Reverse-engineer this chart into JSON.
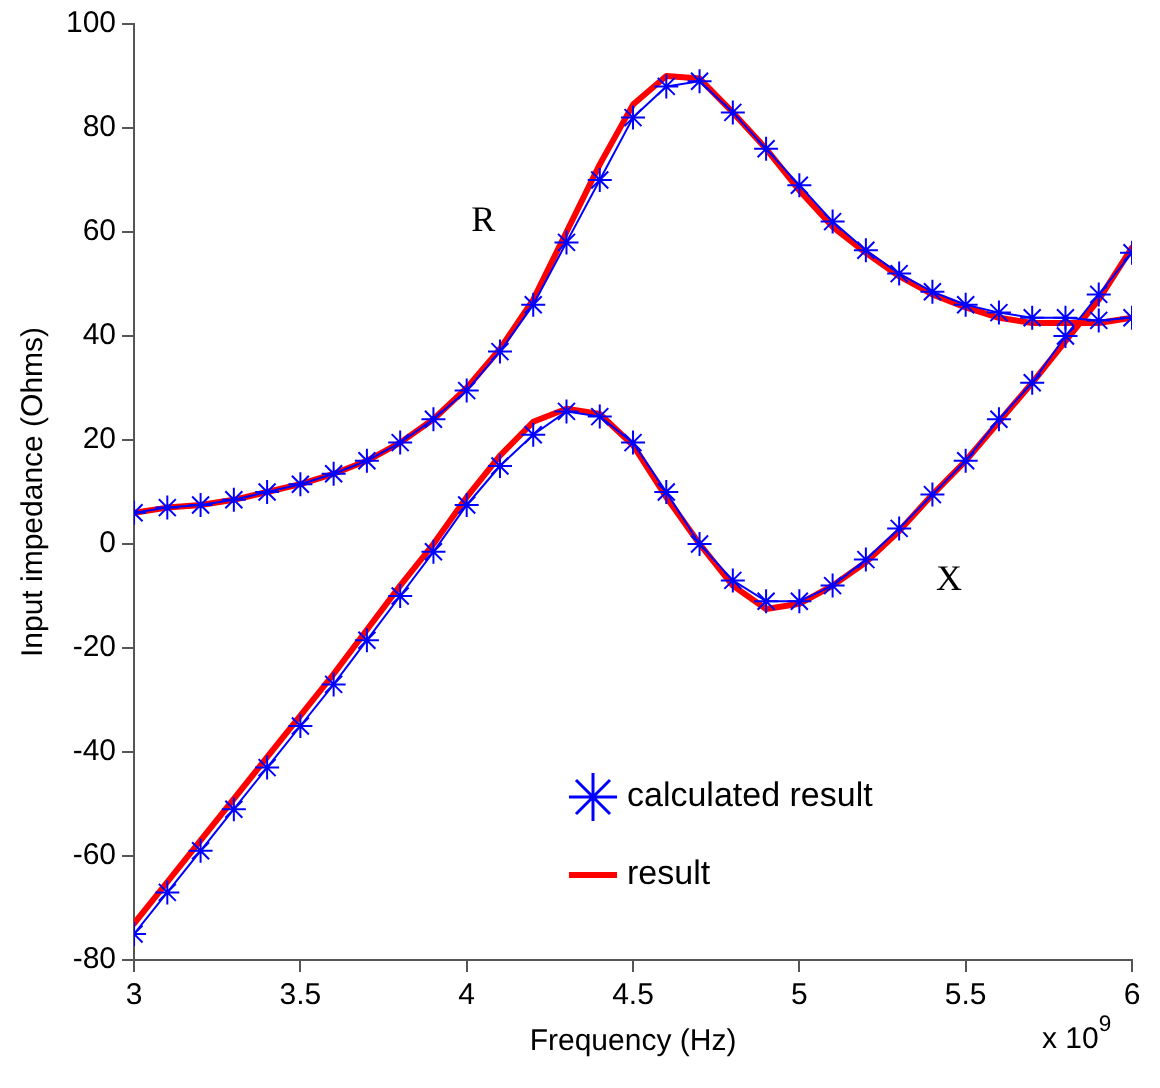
{
  "chart_data": {
    "type": "line",
    "xlabel": "Frequency (Hz)",
    "ylabel": "Input impedance (Ohms)",
    "x": [
      3,
      3.1,
      3.2,
      3.3,
      3.4,
      3.5,
      3.6,
      3.7,
      3.8,
      3.9,
      4,
      4.1,
      4.2,
      4.3,
      4.4,
      4.5,
      4.6,
      4.7,
      4.8,
      4.9,
      5,
      5.1,
      5.2,
      5.3,
      5.4,
      5.5,
      5.6,
      5.7,
      5.8,
      5.9,
      6
    ],
    "xlim": [
      3,
      6
    ],
    "xticks": [
      3,
      3.5,
      4,
      4.5,
      5,
      5.5,
      6
    ],
    "ylim": [
      -80,
      100
    ],
    "yticks": [
      -80,
      -60,
      -40,
      -20,
      0,
      20,
      40,
      60,
      80,
      100
    ],
    "grid": false,
    "legend": "bottom right",
    "line_style": "solid",
    "series": [
      {
        "name": "calculated result",
        "color": "#0000ff",
        "marker": "cross",
        "values": [
          6,
          7,
          7.5,
          8.5,
          10,
          11.5,
          13.5,
          16,
          19.5,
          24,
          29.5,
          37,
          46,
          58,
          70,
          82,
          88,
          89,
          83,
          76,
          69,
          62,
          56.5,
          52,
          48.5,
          46,
          44.5,
          43.5,
          43.5,
          43,
          43.5
        ]
      },
      {
        "name": "result",
        "color": "#ff0000",
        "marker": "none",
        "values": [
          6,
          7,
          7.5,
          8.5,
          10,
          11.5,
          13.5,
          16,
          19.5,
          24,
          30,
          37.5,
          47,
          60,
          73,
          84.5,
          90,
          89.5,
          83,
          76,
          68,
          61,
          56,
          51.5,
          48,
          45.5,
          43.5,
          42.5,
          42.5,
          42.5,
          43.5
        ]
      },
      {
        "color": "#0000ff",
        "marker": "cross",
        "values": [
          -75,
          -67,
          -59,
          -51,
          -43,
          -35,
          -27,
          -18.5,
          -10,
          -1.5,
          7.5,
          15,
          21,
          25.5,
          24.5,
          19.5,
          10,
          0,
          -7,
          -11,
          -11,
          -8,
          -3,
          3,
          9.5,
          16,
          24,
          31,
          40,
          48,
          56
        ]
      },
      {
        "color": "#ff0000",
        "marker": "none",
        "values": [
          -73,
          -65,
          -57,
          -49,
          -41,
          -33,
          -25,
          -16.5,
          -8,
          0,
          9,
          17,
          23.5,
          26,
          25,
          19,
          9,
          0,
          -8,
          -12.5,
          -11.5,
          -8,
          -3.5,
          2.5,
          9.5,
          16,
          23.5,
          31,
          39,
          47,
          57
        ]
      }
    ],
    "annotations": [
      "R",
      "X",
      "x 10$^{9}$"
    ]
  }
}
